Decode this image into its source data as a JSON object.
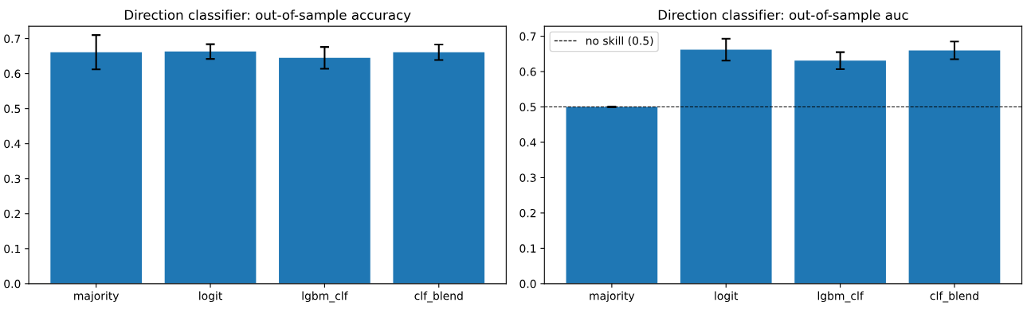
{
  "chart_data": [
    {
      "type": "bar",
      "title": "Direction classifier: out-of-sample accuracy",
      "categories": [
        "majority",
        "logit",
        "lgbm_clf",
        "clf_blend"
      ],
      "values": [
        0.661,
        0.663,
        0.645,
        0.661
      ],
      "errors": [
        0.049,
        0.021,
        0.031,
        0.022
      ],
      "color": "#1f77b4",
      "ylim": [
        0,
        0.735
      ],
      "yticks": [
        {
          "value": 0,
          "label": "0.0"
        },
        0.1,
        0.2,
        0.3,
        0.4,
        0.5,
        0.6,
        0.7
      ],
      "grid": false,
      "legend": false
    },
    {
      "type": "bar",
      "title": "Direction classifier: out-of-sample auc",
      "categories": [
        "majority",
        "logit",
        "lgbm_clf",
        "clf_blend"
      ],
      "values": [
        0.5,
        0.662,
        0.631,
        0.66
      ],
      "errors": [
        0.001,
        0.031,
        0.024,
        0.025
      ],
      "color": "#1f77b4",
      "ylim": [
        0,
        0.728
      ],
      "yticks": [
        {
          "value": 0,
          "label": "0.0"
        },
        0.1,
        0.2,
        0.3,
        0.4,
        0.5,
        0.6,
        0.7
      ],
      "grid": false,
      "legend": "top left",
      "ref_lines": [
        {
          "axis": "y",
          "value": 0.5,
          "label": "no skill (0.5)",
          "color": "#000000",
          "line_style": "dashed"
        }
      ]
    }
  ]
}
